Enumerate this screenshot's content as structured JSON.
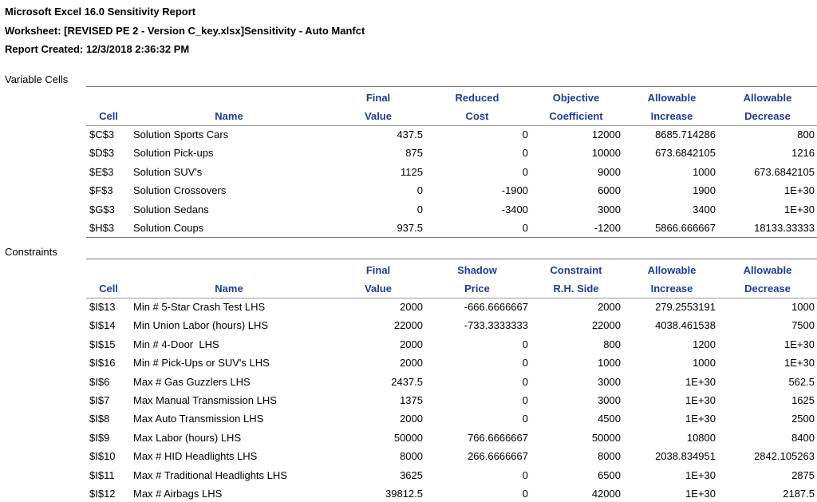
{
  "header": {
    "lines": [
      "Microsoft Excel 16.0 Sensitivity Report",
      "Worksheet: [REVISED PE 2 - Version C_key.xlsx]Sensitivity - Auto Manfct",
      "Report Created: 12/3/2018 2:36:32 PM"
    ]
  },
  "sections": [
    {
      "title": "Variable Cells",
      "columns": [
        {
          "lines": [
            "Cell"
          ]
        },
        {
          "lines": [
            "Name"
          ]
        },
        {
          "lines": [
            "Final",
            "Value"
          ]
        },
        {
          "lines": [
            "Reduced",
            "Cost"
          ]
        },
        {
          "lines": [
            "Objective",
            "Coefficient"
          ]
        },
        {
          "lines": [
            "Allowable",
            "Increase"
          ]
        },
        {
          "lines": [
            "Allowable",
            "Decrease"
          ]
        }
      ],
      "rows": [
        [
          "$C$3",
          "Solution Sports Cars",
          "437.5",
          "0",
          "12000",
          "8685.714286",
          "800"
        ],
        [
          "$D$3",
          "Solution Pick-ups",
          "875",
          "0",
          "10000",
          "673.6842105",
          "1216"
        ],
        [
          "$E$3",
          "Solution SUV's",
          "1125",
          "0",
          "9000",
          "1000",
          "673.6842105"
        ],
        [
          "$F$3",
          "Solution Crossovers",
          "0",
          "-1900",
          "6000",
          "1900",
          "1E+30"
        ],
        [
          "$G$3",
          "Solution Sedans",
          "0",
          "-3400",
          "3000",
          "3400",
          "1E+30"
        ],
        [
          "$H$3",
          "Solution Coups",
          "937.5",
          "0",
          "-1200",
          "5866.666667",
          "18133.33333"
        ]
      ]
    },
    {
      "title": "Constraints",
      "columns": [
        {
          "lines": [
            "Cell"
          ]
        },
        {
          "lines": [
            "Name"
          ]
        },
        {
          "lines": [
            "Final",
            "Value"
          ]
        },
        {
          "lines": [
            "Shadow",
            "Price"
          ]
        },
        {
          "lines": [
            "Constraint",
            "R.H. Side"
          ]
        },
        {
          "lines": [
            "Allowable",
            "Increase"
          ]
        },
        {
          "lines": [
            "Allowable",
            "Decrease"
          ]
        }
      ],
      "rows": [
        [
          "$I$13",
          "Min # 5-Star Crash Test LHS",
          "2000",
          "-666.6666667",
          "2000",
          "279.2553191",
          "1000"
        ],
        [
          "$I$14",
          "Min Union Labor (hours) LHS",
          "22000",
          "-733.3333333",
          "22000",
          "4038.461538",
          "7500"
        ],
        [
          "$I$15",
          "Min # 4-Door  LHS",
          "2000",
          "0",
          "800",
          "1200",
          "1E+30"
        ],
        [
          "$I$16",
          "Min # Pick-Ups or SUV's LHS",
          "2000",
          "0",
          "1000",
          "1000",
          "1E+30"
        ],
        [
          "$I$6",
          "Max # Gas Guzzlers LHS",
          "2437.5",
          "0",
          "3000",
          "1E+30",
          "562.5"
        ],
        [
          "$I$7",
          "Max Manual Transmission LHS",
          "1375",
          "0",
          "3000",
          "1E+30",
          "1625"
        ],
        [
          "$I$8",
          "Max Auto Transmission LHS",
          "2000",
          "0",
          "4500",
          "1E+30",
          "2500"
        ],
        [
          "$I$9",
          "Max Labor (hours) LHS",
          "50000",
          "766.6666667",
          "50000",
          "10800",
          "8400"
        ],
        [
          "$I$10",
          "Max # HID Headlights LHS",
          "8000",
          "266.6666667",
          "8000",
          "2038.834951",
          "2842.105263"
        ],
        [
          "$I$11",
          "Max # Traditional Headlights LHS",
          "3625",
          "0",
          "6500",
          "1E+30",
          "2875"
        ],
        [
          "$I$12",
          "Max # Airbags LHS",
          "39812.5",
          "0",
          "42000",
          "1E+30",
          "2187.5"
        ]
      ]
    }
  ]
}
